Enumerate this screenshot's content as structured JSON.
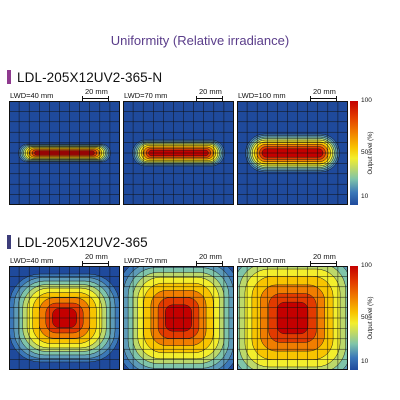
{
  "title": "Uniformity (Relative irradiance)",
  "colors": {
    "title": "#5a3d8a",
    "section_n_marker": "#8e3a8e",
    "section_marker": "#3d3d7a",
    "background_field": "#1f4a9c"
  },
  "scale_bar_label": "20 mm",
  "colorbar": {
    "title": "Output level (%)",
    "ticks": [
      "100",
      "50",
      "10"
    ]
  },
  "sections": [
    {
      "name": "LDL-205X12UV2-365-N",
      "panels": [
        {
          "label": "LWD=40 mm"
        },
        {
          "label": "LWD=70 mm"
        },
        {
          "label": "LWD=100 mm"
        }
      ]
    },
    {
      "name": "LDL-205X12UV2-365",
      "panels": [
        {
          "label": "LWD=40 mm"
        },
        {
          "label": "LWD=70 mm"
        },
        {
          "label": "LWD=100 mm"
        }
      ]
    }
  ],
  "chart_data": {
    "type": "heatmap",
    "title": "Uniformity (Relative irradiance)",
    "colorbar_label": "Output level (%)",
    "colorbar_range": [
      10,
      100
    ],
    "colorbar_ticks": [
      10,
      50,
      100
    ],
    "scale_bar": "20 mm",
    "grid": true,
    "series": [
      {
        "name": "LDL-205X12UV2-365-N",
        "working_distances": [
          "LWD=40 mm",
          "LWD=70 mm",
          "LWD=100 mm"
        ],
        "peak_output_pct": 100,
        "min_output_pct": 10
      },
      {
        "name": "LDL-205X12UV2-365",
        "working_distances": [
          "LWD=40 mm",
          "LWD=70 mm",
          "LWD=100 mm"
        ],
        "peak_output_pct": 100,
        "min_output_pct": 10
      }
    ]
  }
}
